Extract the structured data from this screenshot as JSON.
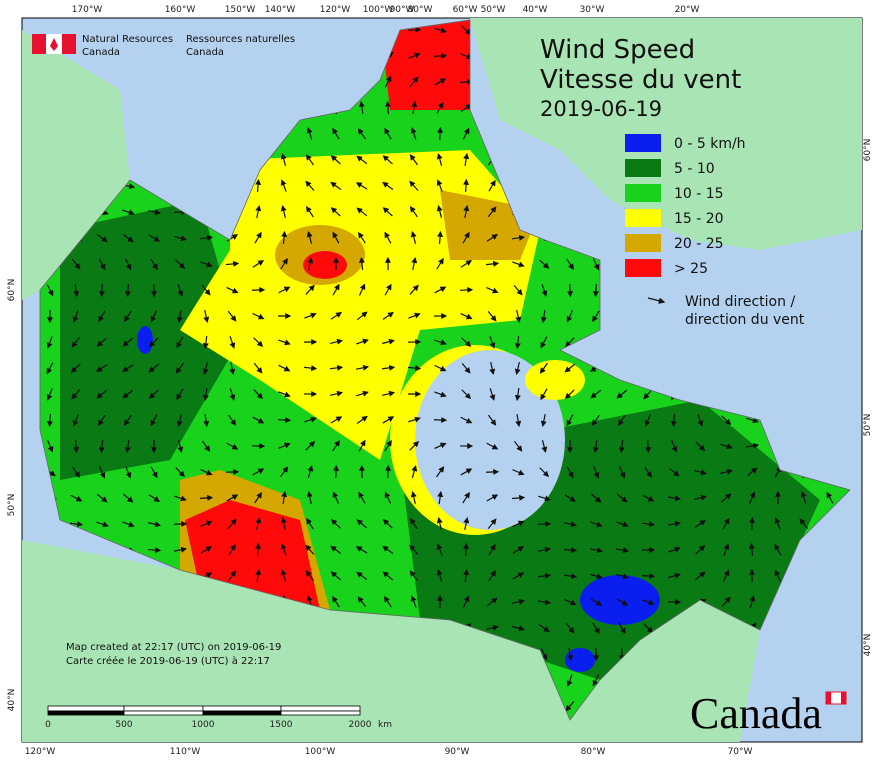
{
  "header": {
    "agency_en": [
      "Natural Resources",
      "Canada"
    ],
    "agency_fr": [
      "Ressources naturelles",
      "Canada"
    ]
  },
  "title": {
    "en": "Wind Speed",
    "fr": "Vitesse du vent",
    "date": "2019-06-19"
  },
  "legend": {
    "items": [
      {
        "label": "0 - 5 km/h",
        "color": "#0a1ef0"
      },
      {
        "label": "5 - 10",
        "color": "#0a7a14"
      },
      {
        "label": "10 - 15",
        "color": "#18d21c"
      },
      {
        "label": "15 - 20",
        "color": "#ffff00"
      },
      {
        "label": "20 - 25",
        "color": "#d4a800"
      },
      {
        "label": "> 25",
        "color": "#ff0a0a"
      }
    ],
    "arrow": [
      "Wind direction /",
      "direction du vent"
    ]
  },
  "graticule": {
    "top": [
      "170°W",
      "160°W",
      "150°W",
      "140°W",
      "120°W",
      "100°W",
      "90°W",
      "80°W",
      "60°W",
      "50°W",
      "40°W",
      "30°W",
      "20°W"
    ],
    "bottom": [
      "120°W",
      "110°W",
      "100°W",
      "90°W",
      "80°W",
      "70°W"
    ],
    "left": [
      "60°N",
      "50°N",
      "40°N"
    ],
    "right": [
      "60°N",
      "50°N",
      "40°N"
    ]
  },
  "footer": {
    "created": [
      "Map created at 22:17 (UTC) on 2019-06-19",
      "Carte créée le 2019-06-19 (UTC) à 22:17"
    ]
  },
  "scale_bar": {
    "ticks": [
      "0",
      "500",
      "1000",
      "1500",
      "2000"
    ],
    "unit": "km"
  },
  "wordmark": "Canada"
}
